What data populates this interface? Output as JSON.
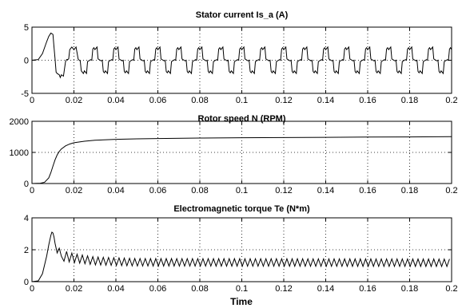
{
  "chart_data": [
    {
      "type": "line",
      "title": "Stator current Is_a (A)",
      "xlabel": "",
      "ylabel": "",
      "xlim": [
        0,
        0.2
      ],
      "ylim": [
        -5,
        5
      ],
      "xticks": [
        0,
        0.02,
        0.04,
        0.06,
        0.08,
        0.1,
        0.12,
        0.14,
        0.16,
        0.18,
        0.2
      ],
      "xtick_labels": [
        "0",
        "0.02",
        "0.04",
        "0.06",
        "0.08",
        "0.1",
        "0.12",
        "0.14",
        "0.16",
        "0.18",
        "0.2"
      ],
      "yticks": [
        -5,
        0,
        5
      ],
      "ytick_labels": [
        "-5",
        "0",
        "5"
      ],
      "grid": true,
      "series": [
        {
          "color": "#000000",
          "x": [
            0,
            0.003,
            0.005,
            0.007,
            0.008,
            0.009,
            0.01,
            0.0105,
            0.011,
            0.0115,
            0.012,
            0.013,
            0.0135,
            0.014,
            0.015,
            0.016,
            0.0165,
            0.017,
            0.0175,
            0.018,
            0.0185,
            0.019,
            0.02,
            0.021,
            0.022,
            0.0225,
            0.023,
            0.0235,
            0.024,
            0.0245,
            0.025
          ],
          "y": [
            0,
            0.1,
            1.0,
            2.8,
            3.6,
            4.1,
            3.9,
            2.0,
            0.2,
            -1.8,
            -2.0,
            -2.2,
            -2.6,
            -2.2,
            -2.4,
            -0.2,
            0.1,
            0.1,
            0.2,
            1.6,
            1.8,
            2.0,
            1.6,
            2.0,
            0.2,
            0,
            -0.1,
            -1.6,
            -1.8,
            -2.0,
            -1.6
          ]
        }
      ],
      "periodic_extension": {
        "from_x": 0.025,
        "to_x": 0.2,
        "period": 0.01,
        "cycle_x": [
          0,
          0.001,
          0.0015,
          0.0025,
          0.003,
          0.0035,
          0.004,
          0.0045,
          0.005,
          0.006,
          0.0065,
          0.0075,
          0.008,
          0.0085,
          0.009,
          0.0095,
          0.01
        ],
        "cycle_y": [
          -1.6,
          -2.0,
          -0.2,
          0,
          0.1,
          0,
          1.7,
          1.9,
          1.6,
          2.0,
          0.2,
          0,
          -0.1,
          0,
          -1.7,
          -1.9,
          -1.6
        ]
      }
    },
    {
      "type": "line",
      "title": "Rotor speed N (RPM)",
      "xlabel": "",
      "ylabel": "",
      "xlim": [
        0,
        0.2
      ],
      "ylim": [
        0,
        2000
      ],
      "xticks": [
        0,
        0.02,
        0.04,
        0.06,
        0.08,
        0.1,
        0.12,
        0.14,
        0.16,
        0.18,
        0.2
      ],
      "xtick_labels": [
        "0",
        "0.02",
        "0.04",
        "0.06",
        "0.08",
        "0.1",
        "0.12",
        "0.14",
        "0.16",
        "0.18",
        "0.2"
      ],
      "yticks": [
        0,
        1000,
        2000
      ],
      "ytick_labels": [
        "0",
        "1000",
        "2000"
      ],
      "grid": true,
      "series": [
        {
          "color": "#000000",
          "x": [
            0,
            0.004,
            0.006,
            0.008,
            0.009,
            0.01,
            0.011,
            0.012,
            0.013,
            0.014,
            0.016,
            0.018,
            0.02,
            0.025,
            0.03,
            0.04,
            0.05,
            0.06,
            0.08,
            0.1,
            0.12,
            0.14,
            0.16,
            0.18,
            0.2
          ],
          "y": [
            0,
            10,
            40,
            180,
            350,
            560,
            760,
            920,
            1030,
            1110,
            1210,
            1270,
            1310,
            1360,
            1390,
            1420,
            1435,
            1445,
            1460,
            1470,
            1478,
            1485,
            1492,
            1498,
            1505
          ]
        }
      ]
    },
    {
      "type": "line",
      "title": "Electromagnetic torque Te (N*m)",
      "xlabel": "Time",
      "ylabel": "",
      "xlim": [
        0,
        0.2
      ],
      "ylim": [
        0,
        4
      ],
      "xticks": [
        0,
        0.02,
        0.04,
        0.06,
        0.08,
        0.1,
        0.12,
        0.14,
        0.16,
        0.18,
        0.2
      ],
      "xtick_labels": [
        "0",
        "0.02",
        "0.04",
        "0.06",
        "0.08",
        "0.1",
        "0.12",
        "0.14",
        "0.16",
        "0.18",
        "0.2"
      ],
      "yticks": [
        0,
        2,
        4
      ],
      "ytick_labels": [
        "0",
        "2",
        "4"
      ],
      "grid": true,
      "series": [
        {
          "color": "#000000",
          "x": [
            0,
            0.003,
            0.005,
            0.007,
            0.008,
            0.009,
            0.0095,
            0.01,
            0.0105,
            0.011,
            0.012,
            0.013,
            0.014
          ],
          "y": [
            0,
            0.05,
            0.5,
            1.6,
            2.3,
            2.9,
            3.1,
            3.05,
            2.8,
            2.4,
            1.8,
            2.1,
            1.6
          ]
        }
      ],
      "oscillation_envelope": {
        "from_x": 0.014,
        "to_x": 0.2,
        "period": 0.0025,
        "upper": [
          [
            0.014,
            2.0
          ],
          [
            0.02,
            1.75
          ],
          [
            0.03,
            1.55
          ],
          [
            0.05,
            1.45
          ],
          [
            0.2,
            1.42
          ]
        ],
        "lower": [
          [
            0.014,
            1.3
          ],
          [
            0.02,
            1.2
          ],
          [
            0.03,
            1.05
          ],
          [
            0.05,
            0.98
          ],
          [
            0.2,
            0.95
          ]
        ]
      }
    }
  ]
}
